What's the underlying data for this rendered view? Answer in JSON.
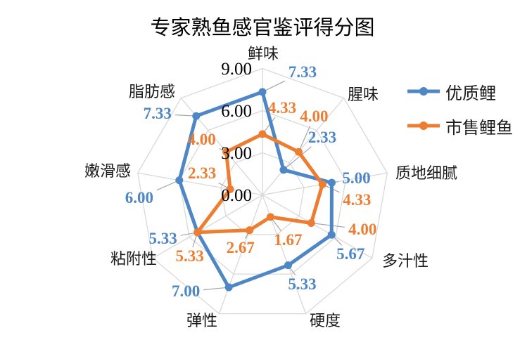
{
  "title": "专家熟鱼感官鉴评得分图",
  "chart_data": {
    "type": "radar",
    "title": "专家熟鱼感官鉴评得分图",
    "categories": [
      "鲜味",
      "腥味",
      "质地细腻",
      "多汁性",
      "硬度",
      "弹性",
      "粘附性",
      "嫩滑感",
      "脂肪感"
    ],
    "series": [
      {
        "name": "优质鲤",
        "color": "#4E86C6",
        "values": [
          7.33,
          2.33,
          5.0,
          5.67,
          5.33,
          7.0,
          5.33,
          6.0,
          7.33
        ]
      },
      {
        "name": "市售鲤鱼",
        "color": "#ED7D31",
        "values": [
          4.33,
          4.0,
          4.33,
          4.0,
          1.67,
          2.67,
          5.33,
          2.33,
          4.0
        ]
      }
    ],
    "r_axis": {
      "min": 0,
      "max": 9,
      "tick_interval": 3,
      "tick_labels": [
        "0.00",
        "3.00",
        "6.00",
        "9.00"
      ]
    },
    "data_labels": true,
    "label_format": "0.00",
    "grid": true,
    "grid_color": "#D9D9D9",
    "leader_line_color": "#A6A6A6",
    "legend_position": "right",
    "background": "#FFFFFF",
    "text_color": "#000000"
  },
  "legend": {
    "items": [
      {
        "label": "优质鲤"
      },
      {
        "label": "市售鲤鱼"
      }
    ]
  }
}
